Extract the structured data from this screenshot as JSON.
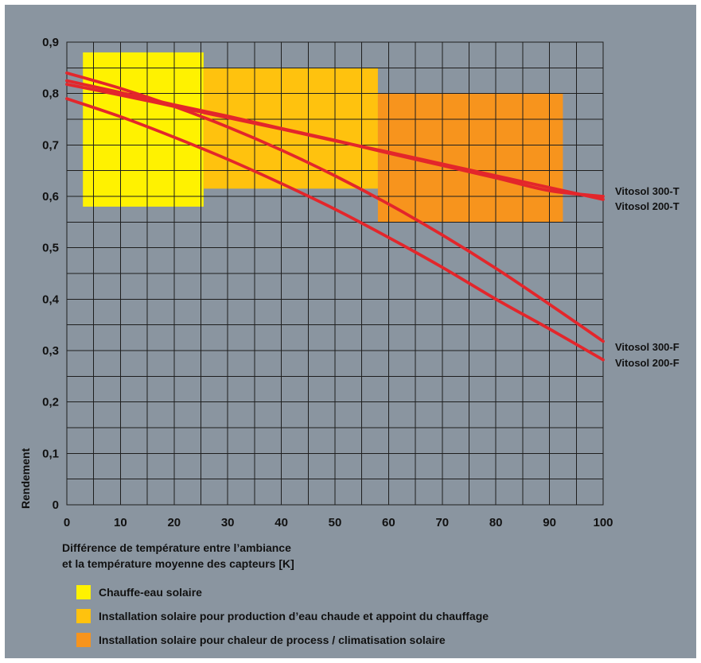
{
  "chart_data": {
    "type": "line",
    "title": "",
    "ylabel": "Rendement",
    "xlabel_lines": [
      "Différence de température entre l’ambiance",
      "et la température moyenne des capteurs [K]"
    ],
    "xlim": [
      0,
      100
    ],
    "ylim": [
      0,
      0.9
    ],
    "grid": true,
    "colors": {
      "panel": "#8a95a0",
      "series": "#e3262b",
      "band_1": "#fff200",
      "band_2": "#ffc20e",
      "band_3": "#f7941d"
    },
    "x_ticks": [
      0,
      10,
      20,
      30,
      40,
      50,
      60,
      70,
      80,
      90,
      100
    ],
    "x_tick_labels": [
      "0",
      "10",
      "20",
      "30",
      "40",
      "50",
      "60",
      "70",
      "80",
      "90",
      "100"
    ],
    "y_ticks": [
      0,
      0.1,
      0.2,
      0.3,
      0.4,
      0.5,
      0.6,
      0.7,
      0.8,
      0.9
    ],
    "y_tick_labels": [
      "0",
      "0,1",
      "0,2",
      "0,3",
      "0,4",
      "0,5",
      "0,6",
      "0,7",
      "0,8",
      "0,9"
    ],
    "bands": [
      {
        "label": "Chauffe-eau solaire",
        "x": [
          3,
          25.5
        ],
        "y": [
          0.58,
          0.88
        ],
        "color": "#fff200"
      },
      {
        "label": "Installation solaire pour production d’eau chaude et appoint du chauffage",
        "x": [
          25.5,
          58
        ],
        "y": [
          0.615,
          0.85
        ],
        "color": "#ffc20e"
      },
      {
        "label": "Installation solaire pour chaleur de process / climatisation solaire",
        "x": [
          58,
          92.5
        ],
        "y": [
          0.55,
          0.8
        ],
        "color": "#f7941d"
      }
    ],
    "series": [
      {
        "name": "Vitosol 300-T",
        "x": [
          0,
          10,
          20,
          30,
          40,
          50,
          60,
          70,
          80,
          90,
          100
        ],
        "y": [
          0.825,
          0.802,
          0.778,
          0.756,
          0.732,
          0.709,
          0.684,
          0.66,
          0.636,
          0.611,
          0.6
        ]
      },
      {
        "name": "Vitosol 200-T",
        "x": [
          0,
          10,
          20,
          30,
          40,
          50,
          60,
          70,
          80,
          90,
          100
        ],
        "y": [
          0.818,
          0.797,
          0.775,
          0.753,
          0.731,
          0.708,
          0.686,
          0.663,
          0.64,
          0.617,
          0.594
        ]
      },
      {
        "name": "Vitosol 300-F",
        "x": [
          0,
          10,
          20,
          30,
          40,
          50,
          60,
          70,
          80,
          90,
          100
        ],
        "y": [
          0.84,
          0.81,
          0.775,
          0.735,
          0.69,
          0.64,
          0.585,
          0.525,
          0.46,
          0.39,
          0.318
        ]
      },
      {
        "name": "Vitosol 200-F",
        "x": [
          0,
          10,
          20,
          30,
          40,
          50,
          60,
          70,
          80,
          90,
          100
        ],
        "y": [
          0.79,
          0.755,
          0.715,
          0.672,
          0.625,
          0.575,
          0.52,
          0.462,
          0.4,
          0.342,
          0.282
        ]
      }
    ]
  }
}
